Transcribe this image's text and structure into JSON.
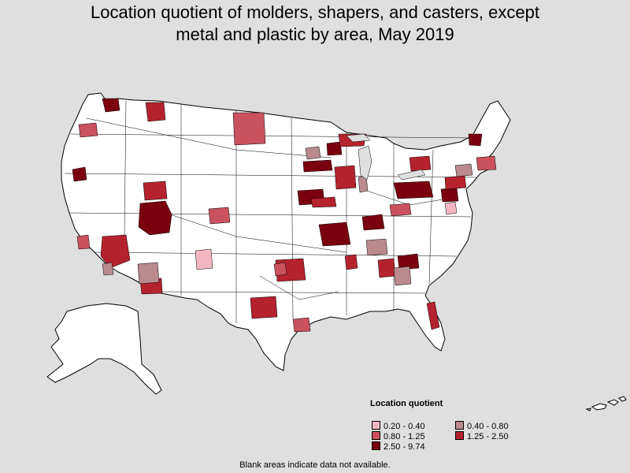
{
  "title_line1": "Location quotient of molders, shapers, and casters, except",
  "title_line2": "metal and plastic by area, May 2019",
  "legend": {
    "title": "Location quotient",
    "items": [
      {
        "label": "0.20 - 0.40",
        "color": "#f4b6c2"
      },
      {
        "label": "0.40 - 0.80",
        "color": "#b98b8f"
      },
      {
        "label": "0.80 - 1.25",
        "color": "#c9525e"
      },
      {
        "label": "1.25 - 2.50",
        "color": "#b5222e"
      },
      {
        "label": "2.50 - 9.74",
        "color": "#7a0010"
      }
    ]
  },
  "footnote": "Blank areas indicate data not available.",
  "colors": {
    "background": "#dfdfdf",
    "land": "#ffffff",
    "border": "#000000"
  }
}
